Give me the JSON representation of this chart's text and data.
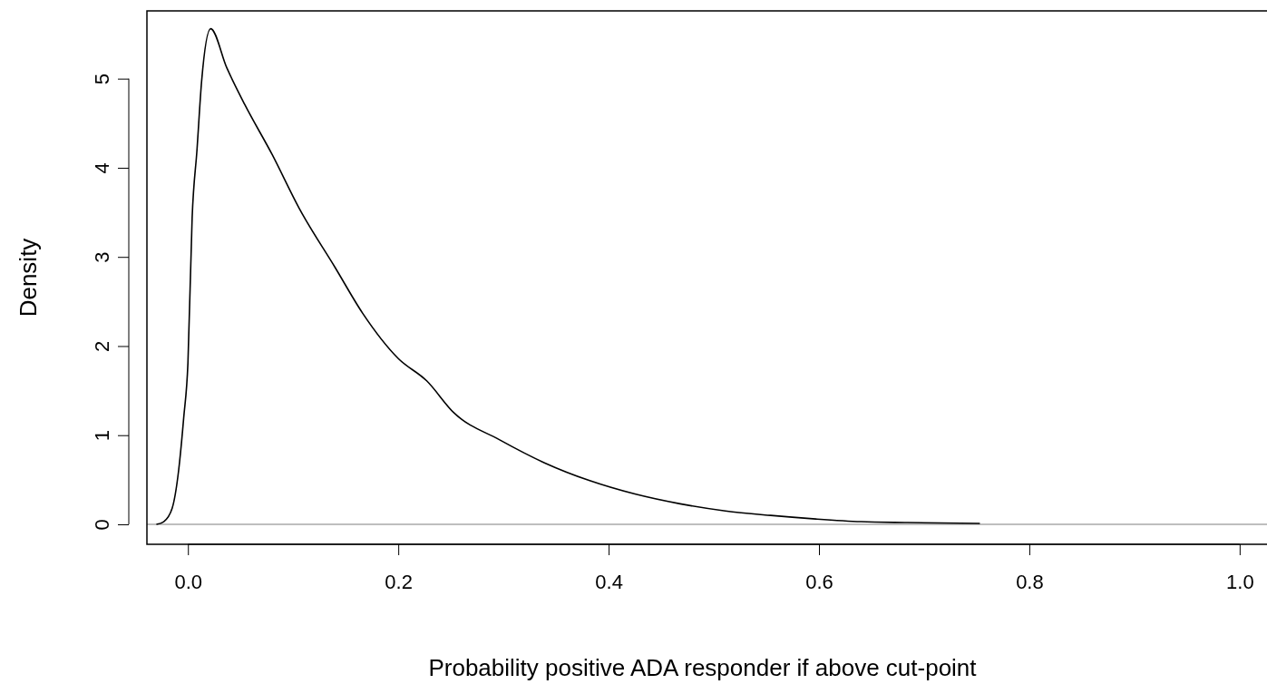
{
  "chart_data": {
    "type": "line",
    "xlabel": "Probability positive ADA responder if above cut-point",
    "ylabel": "Density",
    "xlim": [
      -0.039,
      1.026
    ],
    "ylim": [
      -0.224,
      5.76
    ],
    "xticks": [
      {
        "value": 0,
        "label": "0.0"
      },
      0.2,
      0.4,
      0.6,
      0.8,
      {
        "value": 1,
        "label": "1.0"
      }
    ],
    "yticks": [
      0,
      1,
      2,
      3,
      4,
      5
    ],
    "ref_lines": [
      {
        "axis": "y",
        "value": 0,
        "color": "#bebebe"
      }
    ],
    "series": [
      {
        "color": "#000000",
        "x": [
          -0.03,
          -0.023,
          -0.015,
          -0.009,
          -0.004,
          0.0,
          0.004,
          0.0086,
          0.013,
          0.0216,
          0.037,
          0.054,
          0.08,
          0.106,
          0.14,
          0.166,
          0.2,
          0.227,
          0.253,
          0.296,
          0.339,
          0.382,
          0.425,
          0.468,
          0.511,
          0.554,
          0.597,
          0.64,
          0.684,
          0.753
        ],
        "values": [
          0,
          0.03,
          0.18,
          0.59,
          1.2,
          1.81,
          3.44,
          4.2,
          4.97,
          5.56,
          5.12,
          4.71,
          4.15,
          3.54,
          2.88,
          2.37,
          1.86,
          1.61,
          1.25,
          0.95,
          0.69,
          0.49,
          0.34,
          0.23,
          0.15,
          0.1,
          0.06,
          0.03,
          0.02,
          0.01
        ]
      }
    ]
  }
}
